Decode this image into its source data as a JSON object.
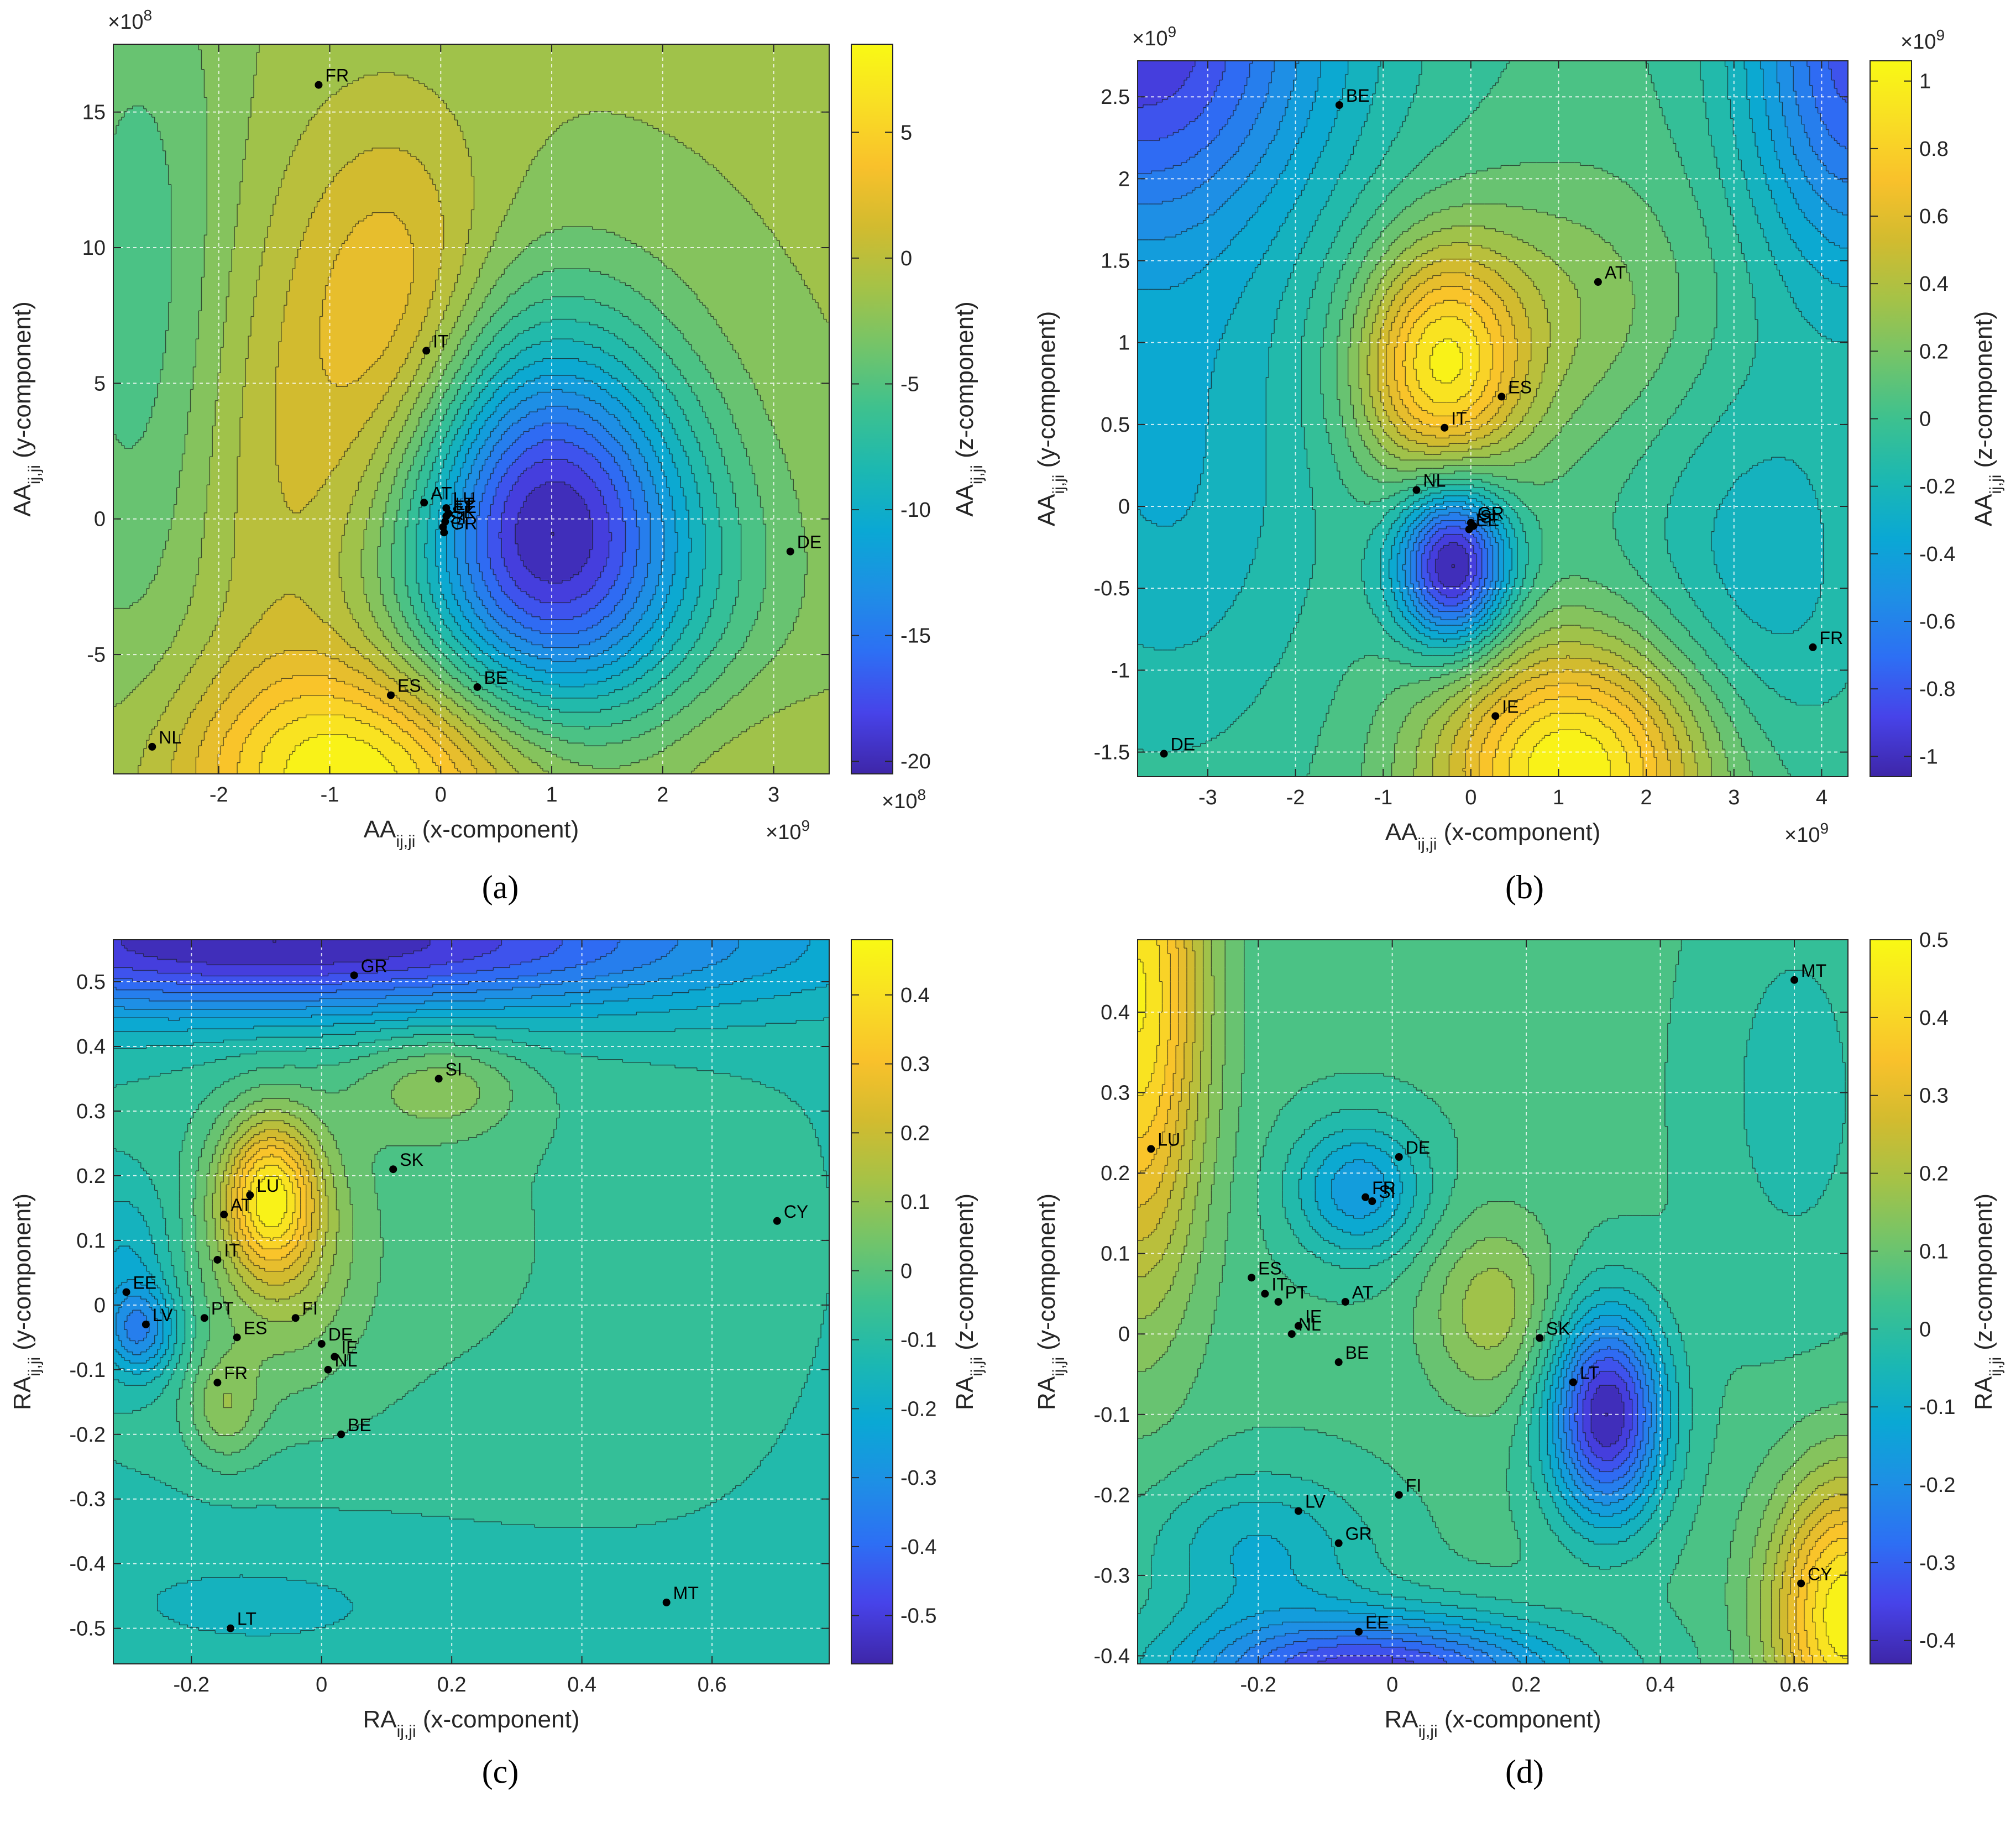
{
  "colors": [
    "#3e26a8",
    "#4743e9",
    "#2d6ff4",
    "#1e8fe5",
    "#0aa8d4",
    "#1cb8b1",
    "#3dc18f",
    "#72c46a",
    "#a5c247",
    "#d2bb2f",
    "#f9c12b",
    "#f9de24",
    "#f9f914"
  ],
  "chart_data": [
    {
      "panel_label": "(a)",
      "type": "contour",
      "xlim": [
        -2.95,
        3.5
      ],
      "ylim": [
        -9.4,
        17.5
      ],
      "x_scale": "×10",
      "x_exp": "9",
      "y_scale": "×10",
      "y_exp": "8",
      "xticks": [
        {
          "v": -2,
          "label": "-2"
        },
        {
          "v": -1,
          "label": "-1"
        },
        {
          "v": 0,
          "label": "0"
        },
        {
          "v": 1,
          "label": "1"
        },
        {
          "v": 2,
          "label": "2"
        },
        {
          "v": 3,
          "label": "3"
        }
      ],
      "yticks": [
        {
          "v": -5,
          "label": "-5"
        },
        {
          "v": 0,
          "label": "0"
        },
        {
          "v": 5,
          "label": "5"
        },
        {
          "v": 10,
          "label": "10"
        },
        {
          "v": 15,
          "label": "15"
        }
      ],
      "xlabel_main": "AA",
      "xlabel_sub": "ij,ji",
      "xlabel_rest": " (x-component)",
      "ylabel_main": "AA",
      "ylabel_sub": "ij,ji",
      "ylabel_rest": " (y-component)",
      "colorbar": {
        "zlim": [
          -20.5,
          8.5
        ],
        "ticks": [
          {
            "v": 5,
            "label": "5"
          },
          {
            "v": 0,
            "label": "0"
          },
          {
            "v": -5,
            "label": "-5"
          },
          {
            "v": -10,
            "label": "-10"
          },
          {
            "v": -15,
            "label": "-15"
          },
          {
            "v": -20,
            "label": "-20"
          }
        ],
        "label_main": "AA",
        "label_sub": "ij,ji",
        "label_rest": " (z-component)",
        "scale": "×10",
        "scale_exp": "8",
        "scale_pos": "bottom"
      },
      "background_level": 0.55,
      "blobs": [
        {
          "x": 0.95,
          "y": 0.2,
          "sx": 0.9,
          "sy": 5.0,
          "a": -0.58
        },
        {
          "x": 1.3,
          "y": -2.5,
          "sx": 1.2,
          "sy": 4.0,
          "a": -0.15
        },
        {
          "x": -0.35,
          "y": 7.5,
          "sx": 0.6,
          "sy": 5.0,
          "a": 0.17
        },
        {
          "x": -0.7,
          "y": -9.5,
          "sx": 1.1,
          "sy": 2.8,
          "a": 0.36
        },
        {
          "x": 2.7,
          "y": -9.0,
          "sx": 0.8,
          "sy": 2.5,
          "a": 0.05
        },
        {
          "x": -1.2,
          "y": 0.5,
          "sx": 0.8,
          "sy": 8.0,
          "a": 0.12
        },
        {
          "x": -2.7,
          "y": 8.0,
          "sx": 0.6,
          "sy": 10.0,
          "a": -0.14
        }
      ],
      "points": [
        {
          "x": -1.1,
          "y": 16.0,
          "label": "FR"
        },
        {
          "x": -0.13,
          "y": 6.2,
          "label": "IT"
        },
        {
          "x": -0.15,
          "y": 0.6,
          "label": "AT"
        },
        {
          "x": 0.05,
          "y": 0.4,
          "label": "LU"
        },
        {
          "x": 0.07,
          "y": 0.2,
          "label": "LT"
        },
        {
          "x": 0.05,
          "y": 0.1,
          "label": "EE"
        },
        {
          "x": 0.04,
          "y": -0.1,
          "label": "SK"
        },
        {
          "x": 0.02,
          "y": -0.3,
          "label": "SI"
        },
        {
          "x": 0.03,
          "y": -0.5,
          "label": "GR"
        },
        {
          "x": 3.15,
          "y": -1.2,
          "label": "DE"
        },
        {
          "x": 0.33,
          "y": -6.2,
          "label": "BE"
        },
        {
          "x": -0.45,
          "y": -6.5,
          "label": "ES"
        },
        {
          "x": -2.6,
          "y": -8.4,
          "label": "NL"
        }
      ]
    },
    {
      "panel_label": "(b)",
      "type": "contour",
      "xlim": [
        -3.8,
        4.3
      ],
      "ylim": [
        -1.65,
        2.72
      ],
      "x_scale": "×10",
      "x_exp": "9",
      "y_scale": "×10",
      "y_exp": "9",
      "xticks": [
        {
          "v": -3,
          "label": "-3"
        },
        {
          "v": -2,
          "label": "-2"
        },
        {
          "v": -1,
          "label": "-1"
        },
        {
          "v": 0,
          "label": "0"
        },
        {
          "v": 1,
          "label": "1"
        },
        {
          "v": 2,
          "label": "2"
        },
        {
          "v": 3,
          "label": "3"
        },
        {
          "v": 4,
          "label": "4"
        }
      ],
      "yticks": [
        {
          "v": -1.5,
          "label": "-1.5"
        },
        {
          "v": -1,
          "label": "-1"
        },
        {
          "v": -0.5,
          "label": "-0.5"
        },
        {
          "v": 0,
          "label": "0"
        },
        {
          "v": 0.5,
          "label": "0.5"
        },
        {
          "v": 1,
          "label": "1"
        },
        {
          "v": 1.5,
          "label": "1.5"
        },
        {
          "v": 2,
          "label": "2"
        },
        {
          "v": 2.5,
          "label": "2.5"
        }
      ],
      "xlabel_main": "AA",
      "xlabel_sub": "ij,ji",
      "xlabel_rest": " (x-component)",
      "ylabel_main": "AA",
      "ylabel_sub": "ij,ji",
      "ylabel_rest": " (y-component)",
      "colorbar": {
        "zlim": [
          -1.06,
          1.06
        ],
        "ticks": [
          {
            "v": 1,
            "label": "1"
          },
          {
            "v": 0.8,
            "label": "0.8"
          },
          {
            "v": 0.6,
            "label": "0.6"
          },
          {
            "v": 0.4,
            "label": "0.4"
          },
          {
            "v": 0.2,
            "label": "0.2"
          },
          {
            "v": 0,
            "label": "0"
          },
          {
            "v": -0.2,
            "label": "-0.2"
          },
          {
            "v": -0.4,
            "label": "-0.4"
          },
          {
            "v": -0.6,
            "label": "-0.6"
          },
          {
            "v": -0.8,
            "label": "-0.8"
          },
          {
            "v": -1,
            "label": "-1"
          }
        ],
        "label_main": "AA",
        "label_sub": "ij,ji",
        "label_rest": " (z-component)",
        "scale": "×10",
        "scale_exp": "9",
        "scale_pos": "top"
      },
      "background_level": 0.5,
      "blobs": [
        {
          "x": -0.35,
          "y": 0.85,
          "sx": 0.65,
          "sy": 0.5,
          "a": 0.42
        },
        {
          "x": 1.15,
          "y": -1.6,
          "sx": 1.1,
          "sy": 0.55,
          "a": 0.5
        },
        {
          "x": -0.2,
          "y": -0.35,
          "sx": 0.45,
          "sy": 0.35,
          "a": -0.55
        },
        {
          "x": -3.8,
          "y": 2.9,
          "sx": 1.6,
          "sy": 0.9,
          "a": -0.45
        },
        {
          "x": 4.4,
          "y": 2.8,
          "sx": 0.9,
          "sy": 1.0,
          "a": -0.4
        },
        {
          "x": -3.5,
          "y": 0.2,
          "sx": 1.3,
          "sy": 1.2,
          "a": -0.15
        },
        {
          "x": 3.3,
          "y": -0.4,
          "sx": 1.0,
          "sy": 0.9,
          "a": -0.13
        },
        {
          "x": 1.0,
          "y": 1.2,
          "sx": 1.2,
          "sy": 0.6,
          "a": 0.12
        }
      ],
      "points": [
        {
          "x": -1.5,
          "y": 2.45,
          "label": "BE"
        },
        {
          "x": 1.45,
          "y": 1.37,
          "label": "AT"
        },
        {
          "x": 0.35,
          "y": 0.67,
          "label": "ES"
        },
        {
          "x": -0.3,
          "y": 0.48,
          "label": "IT"
        },
        {
          "x": -0.62,
          "y": 0.1,
          "label": "NL"
        },
        {
          "x": 0.0,
          "y": -0.1,
          "label": "GR"
        },
        {
          "x": 0.03,
          "y": -0.12,
          "label": "SI"
        },
        {
          "x": -0.02,
          "y": -0.14,
          "label": "EE"
        },
        {
          "x": 3.9,
          "y": -0.86,
          "label": "FR"
        },
        {
          "x": 0.28,
          "y": -1.28,
          "label": "IE"
        },
        {
          "x": -3.5,
          "y": -1.51,
          "label": "DE"
        }
      ]
    },
    {
      "panel_label": "(c)",
      "type": "contour",
      "xlim": [
        -0.32,
        0.78
      ],
      "ylim": [
        -0.555,
        0.565
      ],
      "x_scale": "",
      "x_exp": "",
      "y_scale": "",
      "y_exp": "",
      "xticks": [
        {
          "v": -0.2,
          "label": "-0.2"
        },
        {
          "v": 0,
          "label": "0"
        },
        {
          "v": 0.2,
          "label": "0.2"
        },
        {
          "v": 0.4,
          "label": "0.4"
        },
        {
          "v": 0.6,
          "label": "0.6"
        }
      ],
      "yticks": [
        {
          "v": -0.5,
          "label": "-0.5"
        },
        {
          "v": -0.4,
          "label": "-0.4"
        },
        {
          "v": -0.3,
          "label": "-0.3"
        },
        {
          "v": -0.2,
          "label": "-0.2"
        },
        {
          "v": -0.1,
          "label": "-0.1"
        },
        {
          "v": 0,
          "label": "0"
        },
        {
          "v": 0.1,
          "label": "0.1"
        },
        {
          "v": 0.2,
          "label": "0.2"
        },
        {
          "v": 0.3,
          "label": "0.3"
        },
        {
          "v": 0.4,
          "label": "0.4"
        },
        {
          "v": 0.5,
          "label": "0.5"
        }
      ],
      "xlabel_main": "RA",
      "xlabel_sub": "ij,ji",
      "xlabel_rest": " (x-component)",
      "ylabel_main": "RA",
      "ylabel_sub": "ij,ji",
      "ylabel_rest": " (y-component)",
      "colorbar": {
        "zlim": [
          -0.57,
          0.48
        ],
        "ticks": [
          {
            "v": 0.4,
            "label": "0.4"
          },
          {
            "v": 0.3,
            "label": "0.3"
          },
          {
            "v": 0.2,
            "label": "0.2"
          },
          {
            "v": 0.1,
            "label": "0.1"
          },
          {
            "v": 0,
            "label": "0"
          },
          {
            "v": -0.1,
            "label": "-0.1"
          },
          {
            "v": -0.2,
            "label": "-0.2"
          },
          {
            "v": -0.3,
            "label": "-0.3"
          },
          {
            "v": -0.4,
            "label": "-0.4"
          },
          {
            "v": -0.5,
            "label": "-0.5"
          }
        ],
        "label_main": "RA",
        "label_sub": "ij,ji",
        "label_rest": " (z-component)",
        "scale": "",
        "scale_exp": "",
        "scale_pos": "none"
      },
      "background_level": 0.45,
      "blobs": [
        {
          "x": -0.08,
          "y": 0.17,
          "sx": 0.05,
          "sy": 0.08,
          "a": 0.28
        },
        {
          "x": -0.06,
          "y": 0.08,
          "sx": 0.09,
          "sy": 0.15,
          "a": 0.12
        },
        {
          "x": -0.15,
          "y": -0.16,
          "sx": 0.04,
          "sy": 0.06,
          "a": 0.1
        },
        {
          "x": 0.18,
          "y": 0.34,
          "sx": 0.09,
          "sy": 0.06,
          "a": 0.1
        },
        {
          "x": 0.15,
          "y": 0.1,
          "sx": 0.35,
          "sy": 0.35,
          "a": 0.05
        },
        {
          "x": -0.05,
          "y": 0.56,
          "sx": 0.5,
          "sy": 0.08,
          "a": -0.35
        },
        {
          "x": -0.28,
          "y": -0.04,
          "sx": 0.04,
          "sy": 0.05,
          "a": -0.18
        },
        {
          "x": -0.3,
          "y": 0.08,
          "sx": 0.05,
          "sy": 0.08,
          "a": -0.08
        },
        {
          "x": -0.05,
          "y": -0.45,
          "sx": 0.3,
          "sy": 0.1,
          "a": -0.04
        }
      ],
      "points": [
        {
          "x": 0.05,
          "y": 0.51,
          "label": "GR"
        },
        {
          "x": 0.18,
          "y": 0.35,
          "label": "SI"
        },
        {
          "x": 0.11,
          "y": 0.21,
          "label": "SK"
        },
        {
          "x": -0.11,
          "y": 0.17,
          "label": "LU"
        },
        {
          "x": -0.15,
          "y": 0.14,
          "label": "AT"
        },
        {
          "x": 0.7,
          "y": 0.13,
          "label": "CY"
        },
        {
          "x": -0.16,
          "y": 0.07,
          "label": "IT"
        },
        {
          "x": -0.3,
          "y": 0.02,
          "label": "EE"
        },
        {
          "x": -0.27,
          "y": -0.03,
          "label": "LV"
        },
        {
          "x": -0.18,
          "y": -0.02,
          "label": "PT"
        },
        {
          "x": -0.04,
          "y": -0.02,
          "label": "FI"
        },
        {
          "x": -0.13,
          "y": -0.05,
          "label": "ES"
        },
        {
          "x": 0.0,
          "y": -0.06,
          "label": "DE"
        },
        {
          "x": 0.02,
          "y": -0.08,
          "label": "IE"
        },
        {
          "x": 0.01,
          "y": -0.1,
          "label": "NL"
        },
        {
          "x": -0.16,
          "y": -0.12,
          "label": "FR"
        },
        {
          "x": 0.03,
          "y": -0.2,
          "label": "BE"
        },
        {
          "x": 0.53,
          "y": -0.46,
          "label": "MT"
        },
        {
          "x": -0.14,
          "y": -0.5,
          "label": "LT"
        }
      ]
    },
    {
      "panel_label": "(d)",
      "type": "contour",
      "xlim": [
        -0.38,
        0.68
      ],
      "ylim": [
        -0.41,
        0.49
      ],
      "x_scale": "",
      "x_exp": "",
      "y_scale": "",
      "y_exp": "",
      "xticks": [
        {
          "v": -0.2,
          "label": "-0.2"
        },
        {
          "v": 0,
          "label": "0"
        },
        {
          "v": 0.2,
          "label": "0.2"
        },
        {
          "v": 0.4,
          "label": "0.4"
        },
        {
          "v": 0.6,
          "label": "0.6"
        }
      ],
      "yticks": [
        {
          "v": -0.4,
          "label": "-0.4"
        },
        {
          "v": -0.3,
          "label": "-0.3"
        },
        {
          "v": -0.2,
          "label": "-0.2"
        },
        {
          "v": -0.1,
          "label": "-0.1"
        },
        {
          "v": 0,
          "label": "0"
        },
        {
          "v": 0.1,
          "label": "0.1"
        },
        {
          "v": 0.2,
          "label": "0.2"
        },
        {
          "v": 0.3,
          "label": "0.3"
        },
        {
          "v": 0.4,
          "label": "0.4"
        }
      ],
      "xlabel_main": "RA",
      "xlabel_sub": "ij,ji",
      "xlabel_rest": " (x-component)",
      "ylabel_main": "RA",
      "ylabel_sub": "ij,ji",
      "ylabel_rest": " (y-component)",
      "colorbar": {
        "zlim": [
          -0.43,
          0.5
        ],
        "ticks": [
          {
            "v": 0.5,
            "label": "0.5"
          },
          {
            "v": 0.4,
            "label": "0.4"
          },
          {
            "v": 0.3,
            "label": "0.3"
          },
          {
            "v": 0.2,
            "label": "0.2"
          },
          {
            "v": 0.1,
            "label": "0.1"
          },
          {
            "v": 0,
            "label": "0"
          },
          {
            "v": -0.1,
            "label": "-0.1"
          },
          {
            "v": -0.2,
            "label": "-0.2"
          },
          {
            "v": -0.3,
            "label": "-0.3"
          },
          {
            "v": -0.4,
            "label": "-0.4"
          }
        ],
        "label_main": "RA",
        "label_sub": "ij,ji",
        "label_rest": " (z-component)",
        "scale": "",
        "scale_exp": "",
        "scale_pos": "none"
      },
      "background_level": 0.5,
      "blobs": [
        {
          "x": -0.38,
          "y": 0.42,
          "sx": 0.07,
          "sy": 0.25,
          "a": 0.35
        },
        {
          "x": 0.68,
          "y": -0.35,
          "sx": 0.08,
          "sy": 0.12,
          "a": 0.38
        },
        {
          "x": 0.32,
          "y": -0.1,
          "sx": 0.06,
          "sy": 0.09,
          "a": -0.4
        },
        {
          "x": -0.03,
          "y": -0.42,
          "sx": 0.2,
          "sy": 0.05,
          "a": -0.35
        },
        {
          "x": -0.05,
          "y": 0.18,
          "sx": 0.07,
          "sy": 0.06,
          "a": -0.18
        },
        {
          "x": 0.15,
          "y": 0.03,
          "sx": 0.07,
          "sy": 0.08,
          "a": 0.12
        },
        {
          "x": -0.2,
          "y": -0.27,
          "sx": 0.12,
          "sy": 0.07,
          "a": -0.12
        },
        {
          "x": 0.6,
          "y": 0.3,
          "sx": 0.1,
          "sy": 0.2,
          "a": -0.06
        }
      ],
      "points": [
        {
          "x": 0.6,
          "y": 0.44,
          "label": "MT"
        },
        {
          "x": -0.36,
          "y": 0.23,
          "label": "LU"
        },
        {
          "x": 0.01,
          "y": 0.22,
          "label": "DE"
        },
        {
          "x": -0.04,
          "y": 0.17,
          "label": "FR"
        },
        {
          "x": -0.03,
          "y": 0.165,
          "label": "SI"
        },
        {
          "x": -0.21,
          "y": 0.07,
          "label": "ES"
        },
        {
          "x": -0.19,
          "y": 0.05,
          "label": "IT"
        },
        {
          "x": -0.17,
          "y": 0.04,
          "label": "PT"
        },
        {
          "x": -0.07,
          "y": 0.04,
          "label": "AT"
        },
        {
          "x": -0.14,
          "y": 0.01,
          "label": "IE"
        },
        {
          "x": -0.15,
          "y": 0.0,
          "label": "NL"
        },
        {
          "x": 0.22,
          "y": -0.005,
          "label": "SK"
        },
        {
          "x": -0.08,
          "y": -0.035,
          "label": "BE"
        },
        {
          "x": 0.27,
          "y": -0.06,
          "label": "LT"
        },
        {
          "x": 0.01,
          "y": -0.2,
          "label": "FI"
        },
        {
          "x": -0.14,
          "y": -0.22,
          "label": "LV"
        },
        {
          "x": -0.08,
          "y": -0.26,
          "label": "GR"
        },
        {
          "x": 0.61,
          "y": -0.31,
          "label": "CY"
        },
        {
          "x": -0.05,
          "y": -0.37,
          "label": "EE"
        }
      ]
    }
  ]
}
